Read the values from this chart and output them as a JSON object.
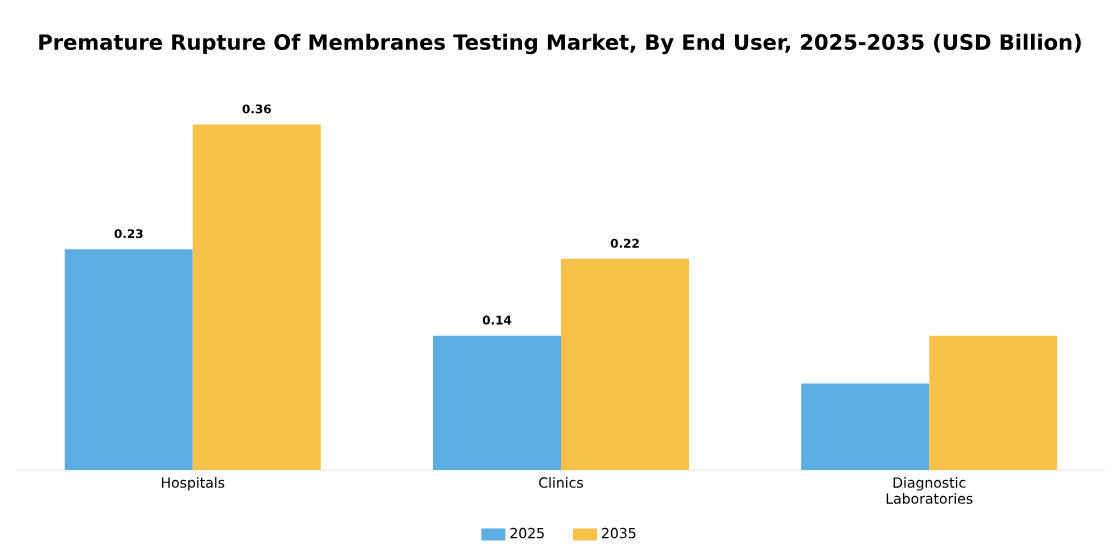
{
  "chart_data": {
    "type": "bar",
    "title": "Premature Rupture Of Membranes Testing Market, By End User, 2025-2035 (USD Billion)",
    "categories": [
      "Hospitals",
      "Clinics",
      "Diagnostic Laboratories"
    ],
    "series": [
      {
        "name": "2025",
        "color": "#5dade2",
        "values": [
          0.23,
          0.14,
          0.09
        ],
        "value_labels": [
          "0.23",
          "0.14",
          null
        ]
      },
      {
        "name": "2035",
        "color": "#f8c24a",
        "values": [
          0.36,
          0.22,
          0.14
        ],
        "value_labels": [
          "0.36",
          "0.22",
          null
        ]
      }
    ],
    "legend": "bottom",
    "grid": false
  }
}
